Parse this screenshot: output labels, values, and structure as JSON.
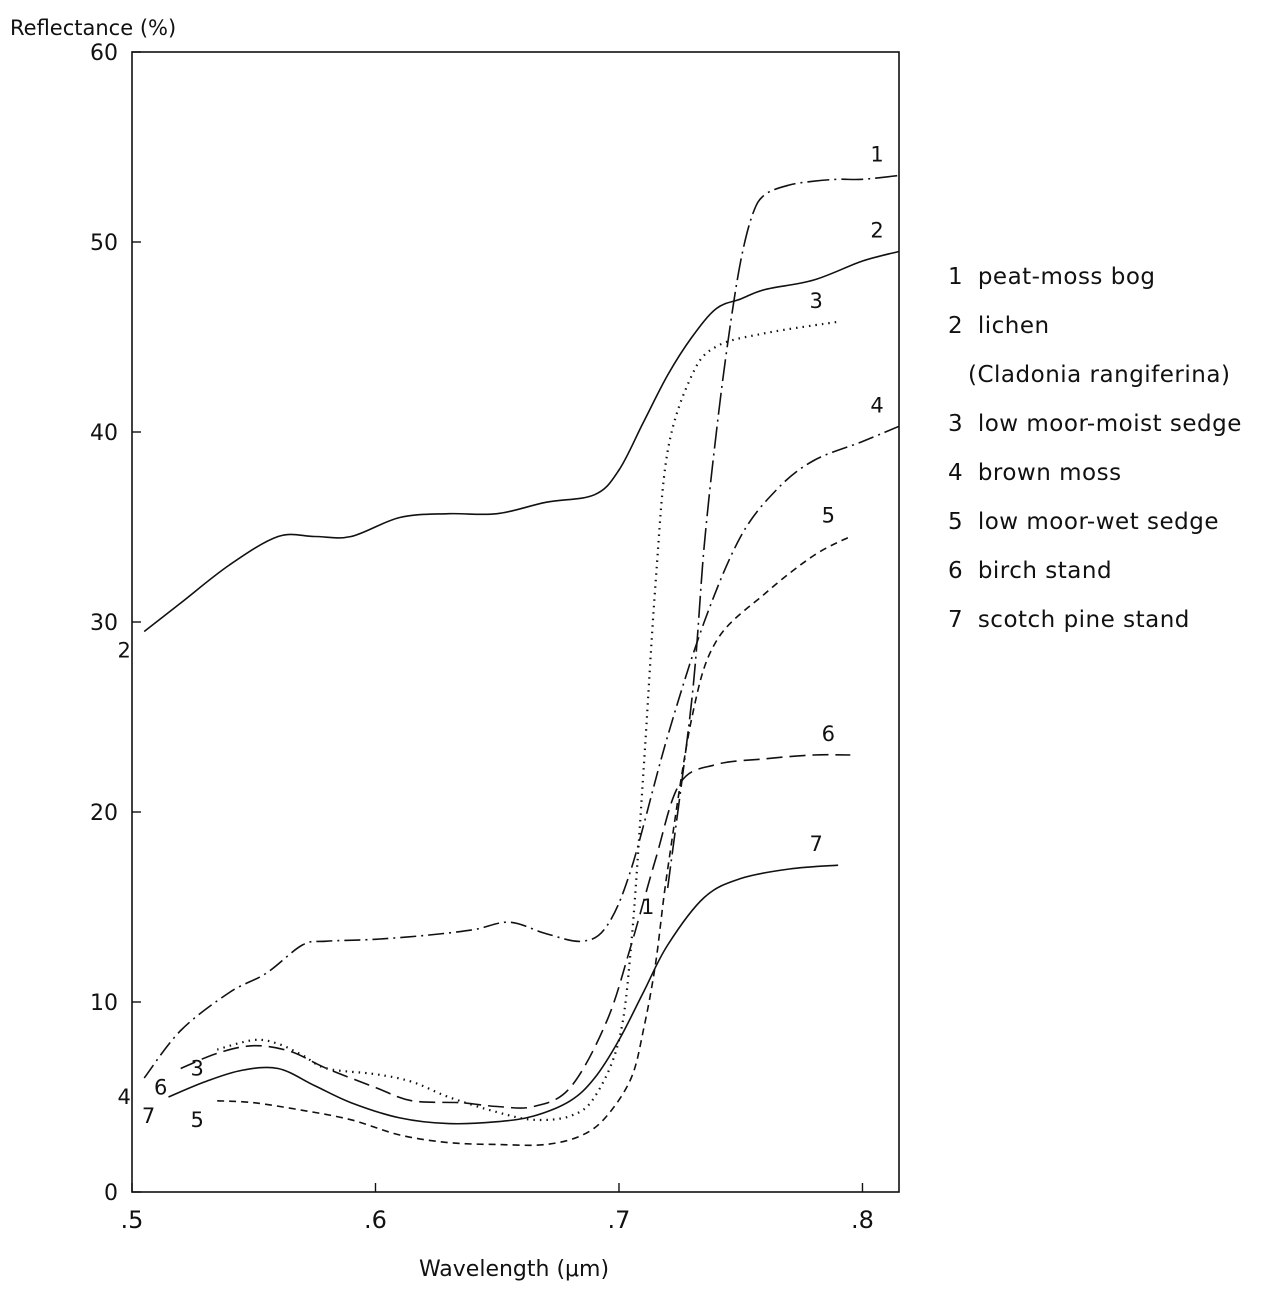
{
  "chart_data": {
    "type": "line",
    "title": "",
    "xlabel": "Wavelength (μm)",
    "ylabel": "Reflectance (%)",
    "xlim": [
      0.5,
      0.815
    ],
    "ylim": [
      0,
      60
    ],
    "x_ticks": [
      0.5,
      0.6,
      0.7,
      0.8
    ],
    "x_tick_labels": [
      ".5",
      ".6",
      ".7",
      ".8"
    ],
    "y_ticks": [
      0,
      10,
      20,
      30,
      40,
      50,
      60
    ],
    "y_tick_labels": [
      "0",
      "10",
      "20",
      "30",
      "40",
      "50",
      "60"
    ],
    "grid": false,
    "legend_position": "right",
    "series": [
      {
        "id": "1",
        "name": "peat-moss bog",
        "label_start": "1",
        "label_end": "1",
        "dash": "dashdot-long",
        "x": [
          0.72,
          0.73,
          0.735,
          0.74,
          0.745,
          0.75,
          0.755,
          0.76,
          0.77,
          0.78,
          0.79,
          0.8,
          0.815
        ],
        "y": [
          16,
          26,
          34,
          40,
          45,
          49,
          51.5,
          52.5,
          53,
          53.2,
          53.3,
          53.3,
          53.5
        ]
      },
      {
        "id": "2",
        "name": "lichen",
        "name_sub": "(Cladonia rangiferina)",
        "label_start": "2",
        "label_end": "2",
        "dash": "solid",
        "x": [
          0.505,
          0.52,
          0.54,
          0.56,
          0.575,
          0.59,
          0.61,
          0.63,
          0.65,
          0.67,
          0.69,
          0.7,
          0.71,
          0.72,
          0.73,
          0.74,
          0.75,
          0.76,
          0.78,
          0.8,
          0.815
        ],
        "y": [
          29.5,
          31,
          33,
          34.5,
          34.5,
          34.5,
          35.5,
          35.7,
          35.7,
          36.3,
          36.7,
          38,
          40.5,
          43,
          45,
          46.5,
          47,
          47.5,
          48,
          49,
          49.5
        ]
      },
      {
        "id": "3",
        "name": "low moor-moist sedge",
        "label_start": "3",
        "label_end": "3",
        "dash": "dotted",
        "x": [
          0.535,
          0.55,
          0.56,
          0.57,
          0.58,
          0.6,
          0.615,
          0.63,
          0.65,
          0.665,
          0.68,
          0.69,
          0.7,
          0.705,
          0.71,
          0.715,
          0.72,
          0.73,
          0.74,
          0.76,
          0.79
        ],
        "y": [
          7.5,
          8,
          7.8,
          7.2,
          6.5,
          6.2,
          5.8,
          5,
          4.2,
          3.8,
          4,
          5,
          8,
          13,
          22,
          32,
          39,
          43,
          44.5,
          45.2,
          45.8
        ]
      },
      {
        "id": "4",
        "name": "brown moss",
        "label_start": "4",
        "label_end": "4",
        "dash": "dashdot",
        "x": [
          0.505,
          0.52,
          0.54,
          0.555,
          0.57,
          0.58,
          0.6,
          0.62,
          0.64,
          0.655,
          0.67,
          0.685,
          0.695,
          0.705,
          0.72,
          0.735,
          0.75,
          0.765,
          0.78,
          0.8,
          0.815
        ],
        "y": [
          6,
          8.5,
          10.5,
          11.5,
          13,
          13.2,
          13.3,
          13.5,
          13.8,
          14.2,
          13.6,
          13.2,
          14,
          17,
          24,
          30,
          34.5,
          37,
          38.5,
          39.5,
          40.3
        ]
      },
      {
        "id": "5",
        "name": "low moor-wet sedge",
        "label_start": "5",
        "label_end": "5",
        "dash": "dashed",
        "x": [
          0.535,
          0.55,
          0.57,
          0.59,
          0.61,
          0.63,
          0.65,
          0.67,
          0.685,
          0.695,
          0.705,
          0.71,
          0.715,
          0.72,
          0.73,
          0.74,
          0.76,
          0.78,
          0.795
        ],
        "y": [
          4.8,
          4.7,
          4.3,
          3.8,
          3,
          2.6,
          2.5,
          2.5,
          3,
          4,
          6,
          8.5,
          12,
          17,
          25,
          29,
          31.5,
          33.5,
          34.5
        ]
      },
      {
        "id": "6",
        "name": "birch stand",
        "label_start": "6",
        "label_end": "6",
        "dash": "longdash",
        "x": [
          0.52,
          0.535,
          0.55,
          0.565,
          0.58,
          0.6,
          0.615,
          0.635,
          0.65,
          0.665,
          0.68,
          0.695,
          0.705,
          0.715,
          0.725,
          0.74,
          0.76,
          0.78,
          0.795
        ],
        "y": [
          6.5,
          7.3,
          7.7,
          7.4,
          6.5,
          5.5,
          4.8,
          4.7,
          4.5,
          4.5,
          5.5,
          9,
          13,
          17.5,
          21.5,
          22.5,
          22.8,
          23,
          23
        ]
      },
      {
        "id": "7",
        "name": "scotch pine stand",
        "label_start": "7",
        "label_end": "7",
        "dash": "solid",
        "x": [
          0.515,
          0.53,
          0.545,
          0.56,
          0.575,
          0.59,
          0.61,
          0.63,
          0.65,
          0.665,
          0.68,
          0.69,
          0.7,
          0.71,
          0.72,
          0.735,
          0.75,
          0.77,
          0.79
        ],
        "y": [
          5,
          5.8,
          6.4,
          6.5,
          5.6,
          4.7,
          3.9,
          3.6,
          3.7,
          4,
          4.8,
          6,
          8,
          10.5,
          13,
          15.5,
          16.5,
          17,
          17.2
        ]
      }
    ]
  }
}
